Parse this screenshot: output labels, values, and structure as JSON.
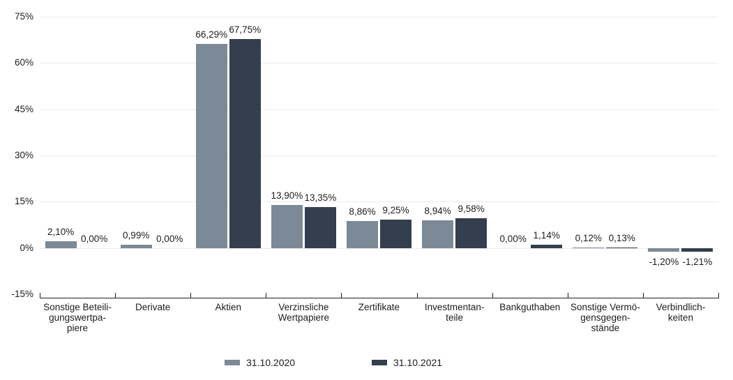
{
  "page": {
    "background_color": "#ffffff",
    "text_color": "#1d1d1b",
    "gridline_color": "#ebebeb",
    "axis_color": "#1d1d1b"
  },
  "chart_data": {
    "type": "bar",
    "title": "",
    "xlabel": "",
    "ylabel": "",
    "ylim": [
      -15,
      75
    ],
    "grid": true,
    "legend_position": "bottom",
    "y_ticks": [
      {
        "label": "75%",
        "value": 75
      },
      {
        "label": "60%",
        "value": 60
      },
      {
        "label": "45%",
        "value": 45
      },
      {
        "label": "30%",
        "value": 30
      },
      {
        "label": "15%",
        "value": 15
      },
      {
        "label": "0%",
        "value": 0
      },
      {
        "label": "-15%",
        "value": -15
      }
    ],
    "categories": [
      {
        "lines": [
          "Sonstige Beteili-",
          "gungswertpa-",
          "piere"
        ]
      },
      {
        "lines": [
          "Derivate"
        ]
      },
      {
        "lines": [
          "Aktien"
        ]
      },
      {
        "lines": [
          "Verzinsliche",
          "Wertpapiere"
        ]
      },
      {
        "lines": [
          "Zertifikate"
        ]
      },
      {
        "lines": [
          "Investmentan-",
          "teile"
        ]
      },
      {
        "lines": [
          "Bankguthaben"
        ]
      },
      {
        "lines": [
          "Sonstige Vermö-",
          "gensgegen-",
          "stände"
        ]
      },
      {
        "lines": [
          "Verbindlich-",
          "keiten"
        ]
      }
    ],
    "series": [
      {
        "name": "31.10.2020",
        "color": "#7c8996",
        "values": [
          2.1,
          0.99,
          66.29,
          13.9,
          8.86,
          8.94,
          0.0,
          0.12,
          -1.2
        ],
        "labels": [
          "2,10%",
          "0,99%",
          "66,29%",
          "13,90%",
          "8,86%",
          "8,94%",
          "0,00%",
          "0,12%",
          "-1,20%"
        ]
      },
      {
        "name": "31.10.2021",
        "color": "#333e4e",
        "values": [
          0.0,
          0.0,
          67.75,
          13.35,
          9.25,
          9.58,
          1.14,
          0.13,
          -1.21
        ],
        "labels": [
          "0,00%",
          "0,00%",
          "67,75%",
          "13,35%",
          "9,25%",
          "9,58%",
          "1,14%",
          "0,13%",
          "-1,21%"
        ]
      }
    ]
  }
}
